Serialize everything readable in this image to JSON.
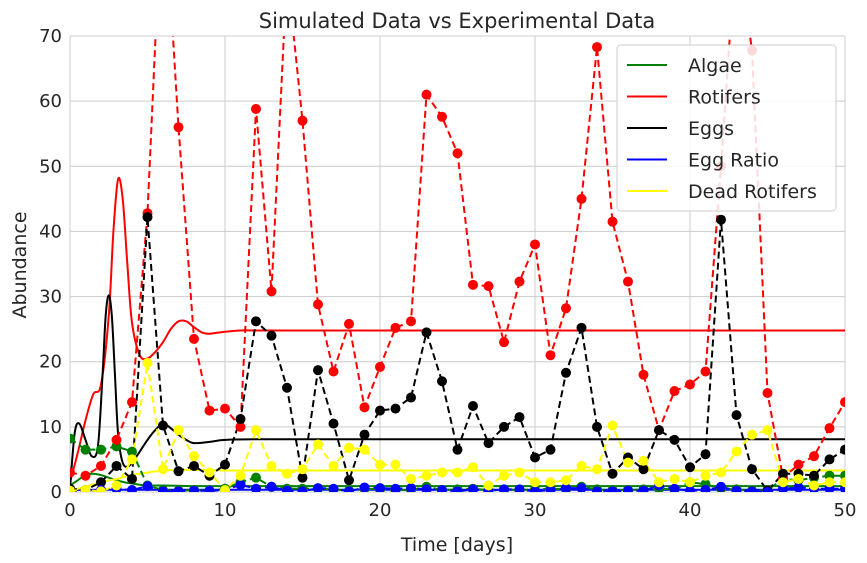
{
  "chart_data": {
    "type": "line",
    "title": "Simulated Data vs Experimental Data",
    "xlabel": "Time [days]",
    "ylabel": "Abundance",
    "xlim": [
      0,
      50
    ],
    "ylim": [
      0,
      70
    ],
    "xticks": [
      0,
      10,
      20,
      30,
      40,
      50
    ],
    "yticks": [
      0,
      10,
      20,
      30,
      40,
      50,
      60,
      70
    ],
    "grid": true,
    "legend_position": "top-right",
    "legend": [
      "Algae",
      "Rotifers",
      "Eggs",
      "Egg Ratio",
      "Dead Rotifers"
    ],
    "simulated": [
      {
        "name": "Algae",
        "color": "#008000",
        "x": [
          0,
          0.5,
          1,
          1.5,
          2,
          2.5,
          3,
          3.5,
          4,
          5,
          6,
          8,
          10,
          12,
          15,
          20,
          30,
          40,
          50
        ],
        "y": [
          1.0,
          1.8,
          2.6,
          2.8,
          2.6,
          2.2,
          1.8,
          1.5,
          1.3,
          1.0,
          1.0,
          0.9,
          0.9,
          0.9,
          0.9,
          0.9,
          0.9,
          0.9,
          0.9
        ]
      },
      {
        "name": "Rotifers",
        "color": "#ff0000",
        "x": [
          0,
          0.5,
          1,
          1.5,
          2,
          2.5,
          2.8,
          3.1,
          3.4,
          3.7,
          4,
          4.5,
          5,
          5.5,
          6,
          6.5,
          7,
          7.5,
          8,
          8.5,
          9,
          10,
          11,
          12,
          15,
          20,
          30,
          40,
          50
        ],
        "y": [
          1.5,
          6.0,
          11.0,
          15.0,
          16.5,
          27.0,
          40.0,
          48.0,
          45.0,
          35.0,
          26.0,
          21.0,
          20.5,
          21.5,
          23.0,
          25.0,
          26.2,
          26.2,
          25.3,
          24.5,
          24.3,
          24.6,
          24.8,
          24.8,
          24.8,
          24.8,
          24.8,
          24.8,
          24.8
        ]
      },
      {
        "name": "Eggs",
        "color": "#000000",
        "x": [
          0,
          0.3,
          0.6,
          1.0,
          1.4,
          1.8,
          2.1,
          2.3,
          2.5,
          2.7,
          2.9,
          3.1,
          3.4,
          3.8,
          4.3,
          5.0,
          5.5,
          6.0,
          6.5,
          7.0,
          7.5,
          8.0,
          9.0,
          10,
          12,
          20,
          30,
          40,
          50
        ],
        "y": [
          0.5,
          9.0,
          10.5,
          8.0,
          5.5,
          7.0,
          18.0,
          27.0,
          30.2,
          27.0,
          18.0,
          9.0,
          4.5,
          4.0,
          5.5,
          8.0,
          9.5,
          10.5,
          9.8,
          8.8,
          8.0,
          7.5,
          7.7,
          8.0,
          8.1,
          8.1,
          8.1,
          8.1,
          8.1
        ]
      },
      {
        "name": "Egg Ratio",
        "color": "#0000ff",
        "x": [
          0,
          2,
          5,
          10,
          20,
          30,
          40,
          50
        ],
        "y": [
          0.3,
          0.35,
          0.35,
          0.35,
          0.35,
          0.35,
          0.35,
          0.35
        ]
      },
      {
        "name": "Dead Rotifers",
        "color": "#ffff00",
        "x": [
          0,
          1,
          2,
          3,
          4,
          5,
          6,
          7,
          8,
          10,
          15,
          20,
          30,
          40,
          50
        ],
        "y": [
          0.2,
          0.8,
          1.5,
          2.0,
          2.6,
          3.0,
          3.3,
          3.4,
          3.4,
          3.3,
          3.3,
          3.3,
          3.3,
          3.3,
          3.3
        ]
      }
    ],
    "experimental": [
      {
        "name": "Algae",
        "color": "#008000",
        "x": [
          0,
          1,
          2,
          3,
          4,
          5,
          6,
          7,
          8,
          9,
          10,
          11,
          12,
          13,
          14,
          15,
          16,
          17,
          18,
          19,
          20,
          21,
          22,
          23,
          24,
          25,
          26,
          27,
          28,
          29,
          30,
          31,
          32,
          33,
          34,
          35,
          36,
          37,
          38,
          39,
          40,
          41,
          42,
          43,
          44,
          45,
          46,
          47,
          48,
          49,
          50
        ],
        "y": [
          8.2,
          6.5,
          6.5,
          7.0,
          6.2,
          1.0,
          0.3,
          0.2,
          0.3,
          0.2,
          0.5,
          1.5,
          2.2,
          0.8,
          0.5,
          0.5,
          0.5,
          0.4,
          0.2,
          0.5,
          0.4,
          0.3,
          0.3,
          0.8,
          0.3,
          0.4,
          0.5,
          0.3,
          0.4,
          0.3,
          0.4,
          0.5,
          0.4,
          0.8,
          0.4,
          0.3,
          0.3,
          0.4,
          0.5,
          0.4,
          1.5,
          1.2,
          0.5,
          0.4,
          0.2,
          0.3,
          2.0,
          1.8,
          2.2,
          2.5,
          2.5
        ]
      },
      {
        "name": "Rotifers",
        "color": "#ff0000",
        "x": [
          0,
          1,
          2,
          3,
          4,
          5,
          6,
          7,
          8,
          9,
          10,
          11,
          12,
          13,
          14,
          15,
          16,
          17,
          18,
          19,
          20,
          21,
          22,
          23,
          24,
          25,
          26,
          27,
          28,
          29,
          30,
          31,
          32,
          33,
          34,
          35,
          36,
          37,
          38,
          39,
          40,
          41,
          42,
          43,
          44,
          45,
          46,
          47,
          48,
          49,
          50
        ],
        "y": [
          3.0,
          2.5,
          4.0,
          8.0,
          13.8,
          42.8,
          95.0,
          56.0,
          23.5,
          12.5,
          12.8,
          10.0,
          58.8,
          30.8,
          80.0,
          57.0,
          28.8,
          18.5,
          25.8,
          13.0,
          19.2,
          25.2,
          26.2,
          61.0,
          57.6,
          52.0,
          31.8,
          31.6,
          23.0,
          32.3,
          38.0,
          21.0,
          28.2,
          45.0,
          68.3,
          41.5,
          32.3,
          18.0,
          9.5,
          15.5,
          16.5,
          18.5,
          50.0,
          85.0,
          67.8,
          15.2,
          2.2,
          4.2,
          5.5,
          9.8,
          13.8
        ]
      },
      {
        "name": "Eggs",
        "color": "#000000",
        "x": [
          0,
          1,
          2,
          3,
          4,
          5,
          6,
          7,
          8,
          9,
          10,
          11,
          12,
          13,
          14,
          15,
          16,
          17,
          18,
          19,
          20,
          21,
          22,
          23,
          24,
          25,
          26,
          27,
          28,
          29,
          30,
          31,
          32,
          33,
          34,
          35,
          36,
          37,
          38,
          39,
          40,
          41,
          42,
          43,
          44,
          45,
          46,
          47,
          48,
          49,
          50
        ],
        "y": [
          0.5,
          0.3,
          1.5,
          4.0,
          2.0,
          42.2,
          10.2,
          3.2,
          4.0,
          2.5,
          4.2,
          11.2,
          26.2,
          24.0,
          16.0,
          2.2,
          18.7,
          10.5,
          1.8,
          8.8,
          12.5,
          12.8,
          14.5,
          24.5,
          17.0,
          6.5,
          13.2,
          7.5,
          10.0,
          11.5,
          5.3,
          6.5,
          18.3,
          25.2,
          10.0,
          2.8,
          5.3,
          3.5,
          9.5,
          8.0,
          3.8,
          5.8,
          41.8,
          11.8,
          3.5,
          0.2,
          2.8,
          2.8,
          2.5,
          5.0,
          6.5
        ]
      },
      {
        "name": "Egg Ratio",
        "color": "#0000ff",
        "x": [
          0,
          1,
          2,
          3,
          4,
          5,
          6,
          7,
          8,
          9,
          10,
          11,
          12,
          13,
          14,
          15,
          16,
          17,
          18,
          19,
          20,
          21,
          22,
          23,
          24,
          25,
          26,
          27,
          28,
          29,
          30,
          31,
          32,
          33,
          34,
          35,
          36,
          37,
          38,
          39,
          40,
          41,
          42,
          43,
          44,
          45,
          46,
          47,
          48,
          49,
          50
        ],
        "y": [
          0.2,
          0.1,
          0.3,
          0.5,
          0.3,
          0.9,
          0.1,
          0.1,
          0.2,
          0.2,
          0.3,
          1.1,
          0.5,
          0.8,
          0.2,
          0.1,
          0.6,
          0.5,
          0.1,
          0.7,
          0.6,
          0.5,
          0.6,
          0.4,
          0.3,
          0.1,
          0.4,
          0.2,
          0.4,
          0.4,
          0.1,
          0.3,
          0.6,
          0.6,
          0.1,
          0.1,
          0.2,
          0.2,
          1.0,
          0.5,
          0.2,
          0.3,
          0.8,
          0.2,
          0.1,
          0.0,
          0.5,
          0.7,
          0.5,
          0.5,
          0.5
        ]
      },
      {
        "name": "Dead Rotifers",
        "color": "#ffff00",
        "x": [
          0,
          1,
          2,
          3,
          4,
          5,
          6,
          7,
          8,
          9,
          10,
          11,
          12,
          13,
          14,
          15,
          16,
          17,
          18,
          19,
          20,
          21,
          22,
          23,
          24,
          25,
          26,
          27,
          28,
          29,
          30,
          31,
          32,
          33,
          34,
          35,
          36,
          37,
          38,
          39,
          40,
          41,
          42,
          43,
          44,
          45,
          46,
          47,
          48,
          49,
          50
        ],
        "y": [
          0.2,
          0.3,
          0.1,
          1.0,
          5.0,
          19.8,
          3.5,
          9.5,
          5.5,
          3.0,
          0.3,
          2.5,
          9.5,
          4.0,
          2.8,
          3.5,
          7.3,
          4.0,
          6.8,
          6.5,
          4.2,
          4.2,
          2.0,
          2.5,
          3.0,
          3.0,
          3.8,
          1.0,
          2.5,
          3.0,
          1.5,
          1.5,
          1.8,
          4.0,
          3.5,
          10.2,
          4.5,
          4.8,
          1.5,
          2.0,
          1.5,
          2.5,
          3.0,
          6.2,
          8.8,
          9.5,
          1.5,
          2.0,
          1.0,
          1.5,
          1.5
        ]
      }
    ]
  }
}
